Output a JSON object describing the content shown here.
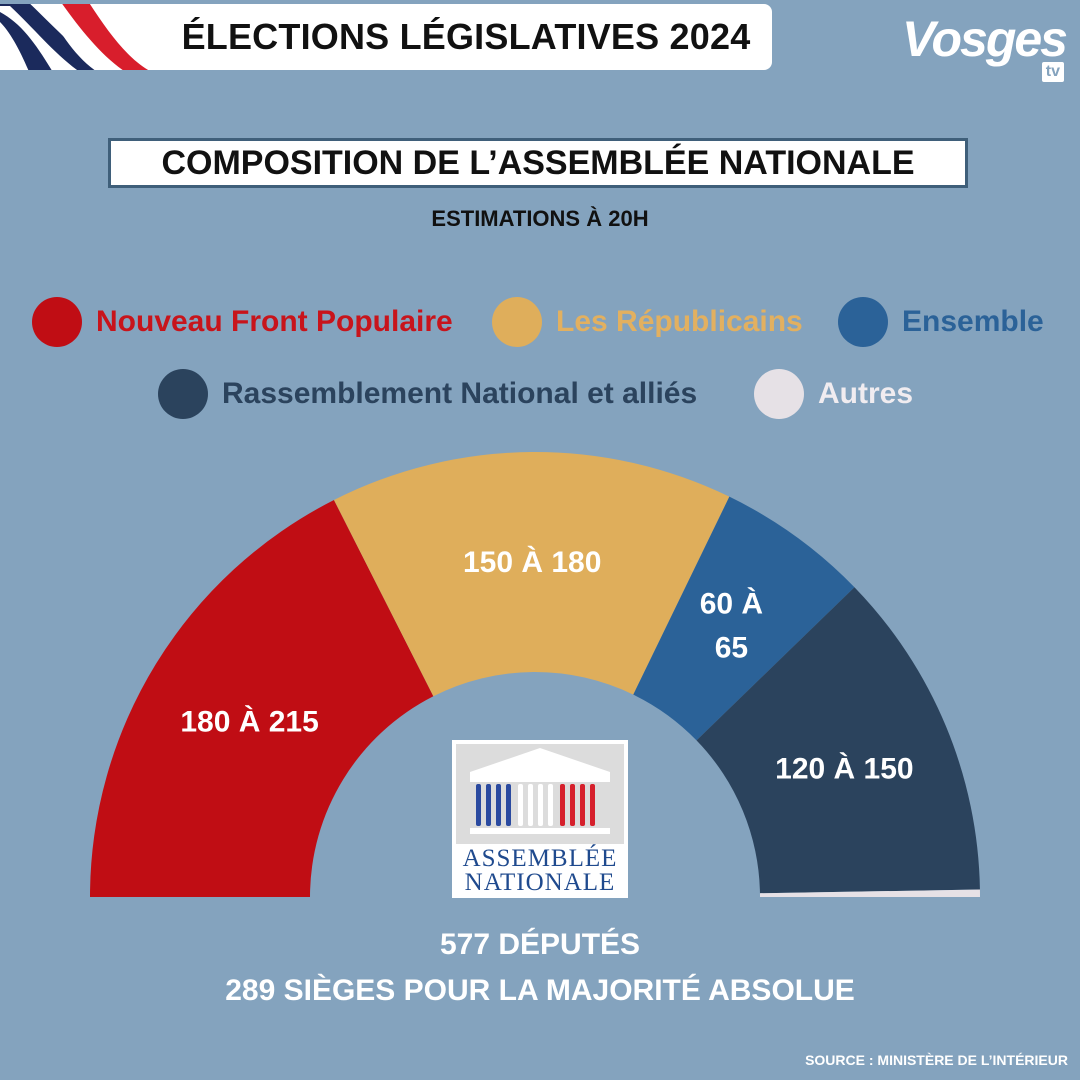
{
  "header": {
    "title": "ÉLECTIONS LÉGISLATIVES 2024",
    "brand": "Vosges",
    "brand_suffix": "tv"
  },
  "chart_title": "COMPOSITION DE L’ASSEMBLÉE NATIONALE",
  "chart_subtitle": "ESTIMATIONS À 20H",
  "legend": [
    {
      "label": "Nouveau Front Populaire",
      "color": "#c00d14",
      "text_color": "#c8141b"
    },
    {
      "label": "Les Républicains",
      "color": "#dfae5b",
      "text_color": "#e2b060"
    },
    {
      "label": "Ensemble",
      "color": "#2b6298",
      "text_color": "#2b6298"
    },
    {
      "label": "Rassemblement National et alliés",
      "color": "#2b435d",
      "text_color": "#2b435d"
    },
    {
      "label": "Autres",
      "color": "#e6e1e6",
      "text_color": "#f0ecf0"
    }
  ],
  "chart_data": {
    "type": "pie",
    "total": 577,
    "series": [
      {
        "name": "Nouveau Front Populaire",
        "label": "180 À 215",
        "values": [
          180,
          215
        ],
        "color": "#c00d14"
      },
      {
        "name": "Les Républicains",
        "label": "150 À 180",
        "values": [
          150,
          180
        ],
        "color": "#dfae5b"
      },
      {
        "name": "Ensemble",
        "label": "60 À 65",
        "label_lines": [
          "60 À",
          "65"
        ],
        "values": [
          60,
          65
        ],
        "color": "#2b6298"
      },
      {
        "name": "Rassemblement National et alliés",
        "label": "120 À 150",
        "values": [
          120,
          150
        ],
        "color": "#2b435d"
      },
      {
        "name": "Autres",
        "label": "",
        "values": [
          3,
          3
        ],
        "color": "#e6e1e6"
      }
    ]
  },
  "emblem": {
    "line1": "ASSEMBLÉE",
    "line2": "NATIONALE"
  },
  "footer": {
    "line1": "577 DÉPUTÉS",
    "line2": "289 SIÈGES POUR LA MAJORITÉ ABSOLUE",
    "source": "SOURCE : MINISTÈRE DE L’INTÉRIEUR"
  }
}
